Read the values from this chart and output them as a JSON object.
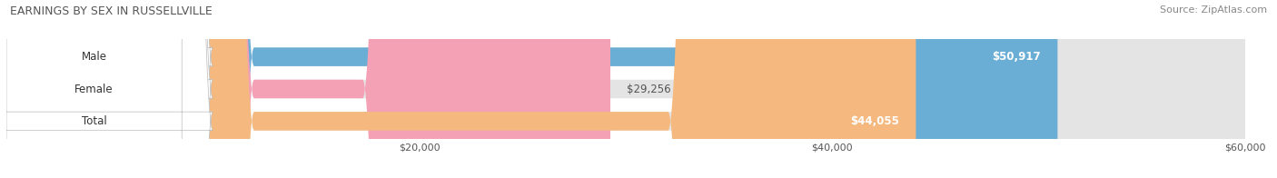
{
  "title": "EARNINGS BY SEX IN RUSSELLVILLE",
  "source": "Source: ZipAtlas.com",
  "categories": [
    "Male",
    "Female",
    "Total"
  ],
  "values": [
    50917,
    29256,
    44055
  ],
  "bar_colors": [
    "#6aaed6",
    "#f4a0b5",
    "#f5b97f"
  ],
  "bar_bg_color": "#e4e4e4",
  "xmin": 0,
  "xmax": 60000,
  "xticks": [
    20000,
    40000,
    60000
  ],
  "xtick_labels": [
    "$20,000",
    "$40,000",
    "$60,000"
  ],
  "value_labels": [
    "$50,917",
    "$29,256",
    "$44,055"
  ],
  "value_label_inside": [
    true,
    false,
    true
  ],
  "figsize": [
    14.06,
    1.96
  ],
  "dpi": 100,
  "bg_color": "#ffffff",
  "bar_height": 0.58,
  "title_fontsize": 9,
  "source_fontsize": 8,
  "tick_fontsize": 8,
  "label_fontsize": 8.5,
  "value_fontsize": 8.5
}
